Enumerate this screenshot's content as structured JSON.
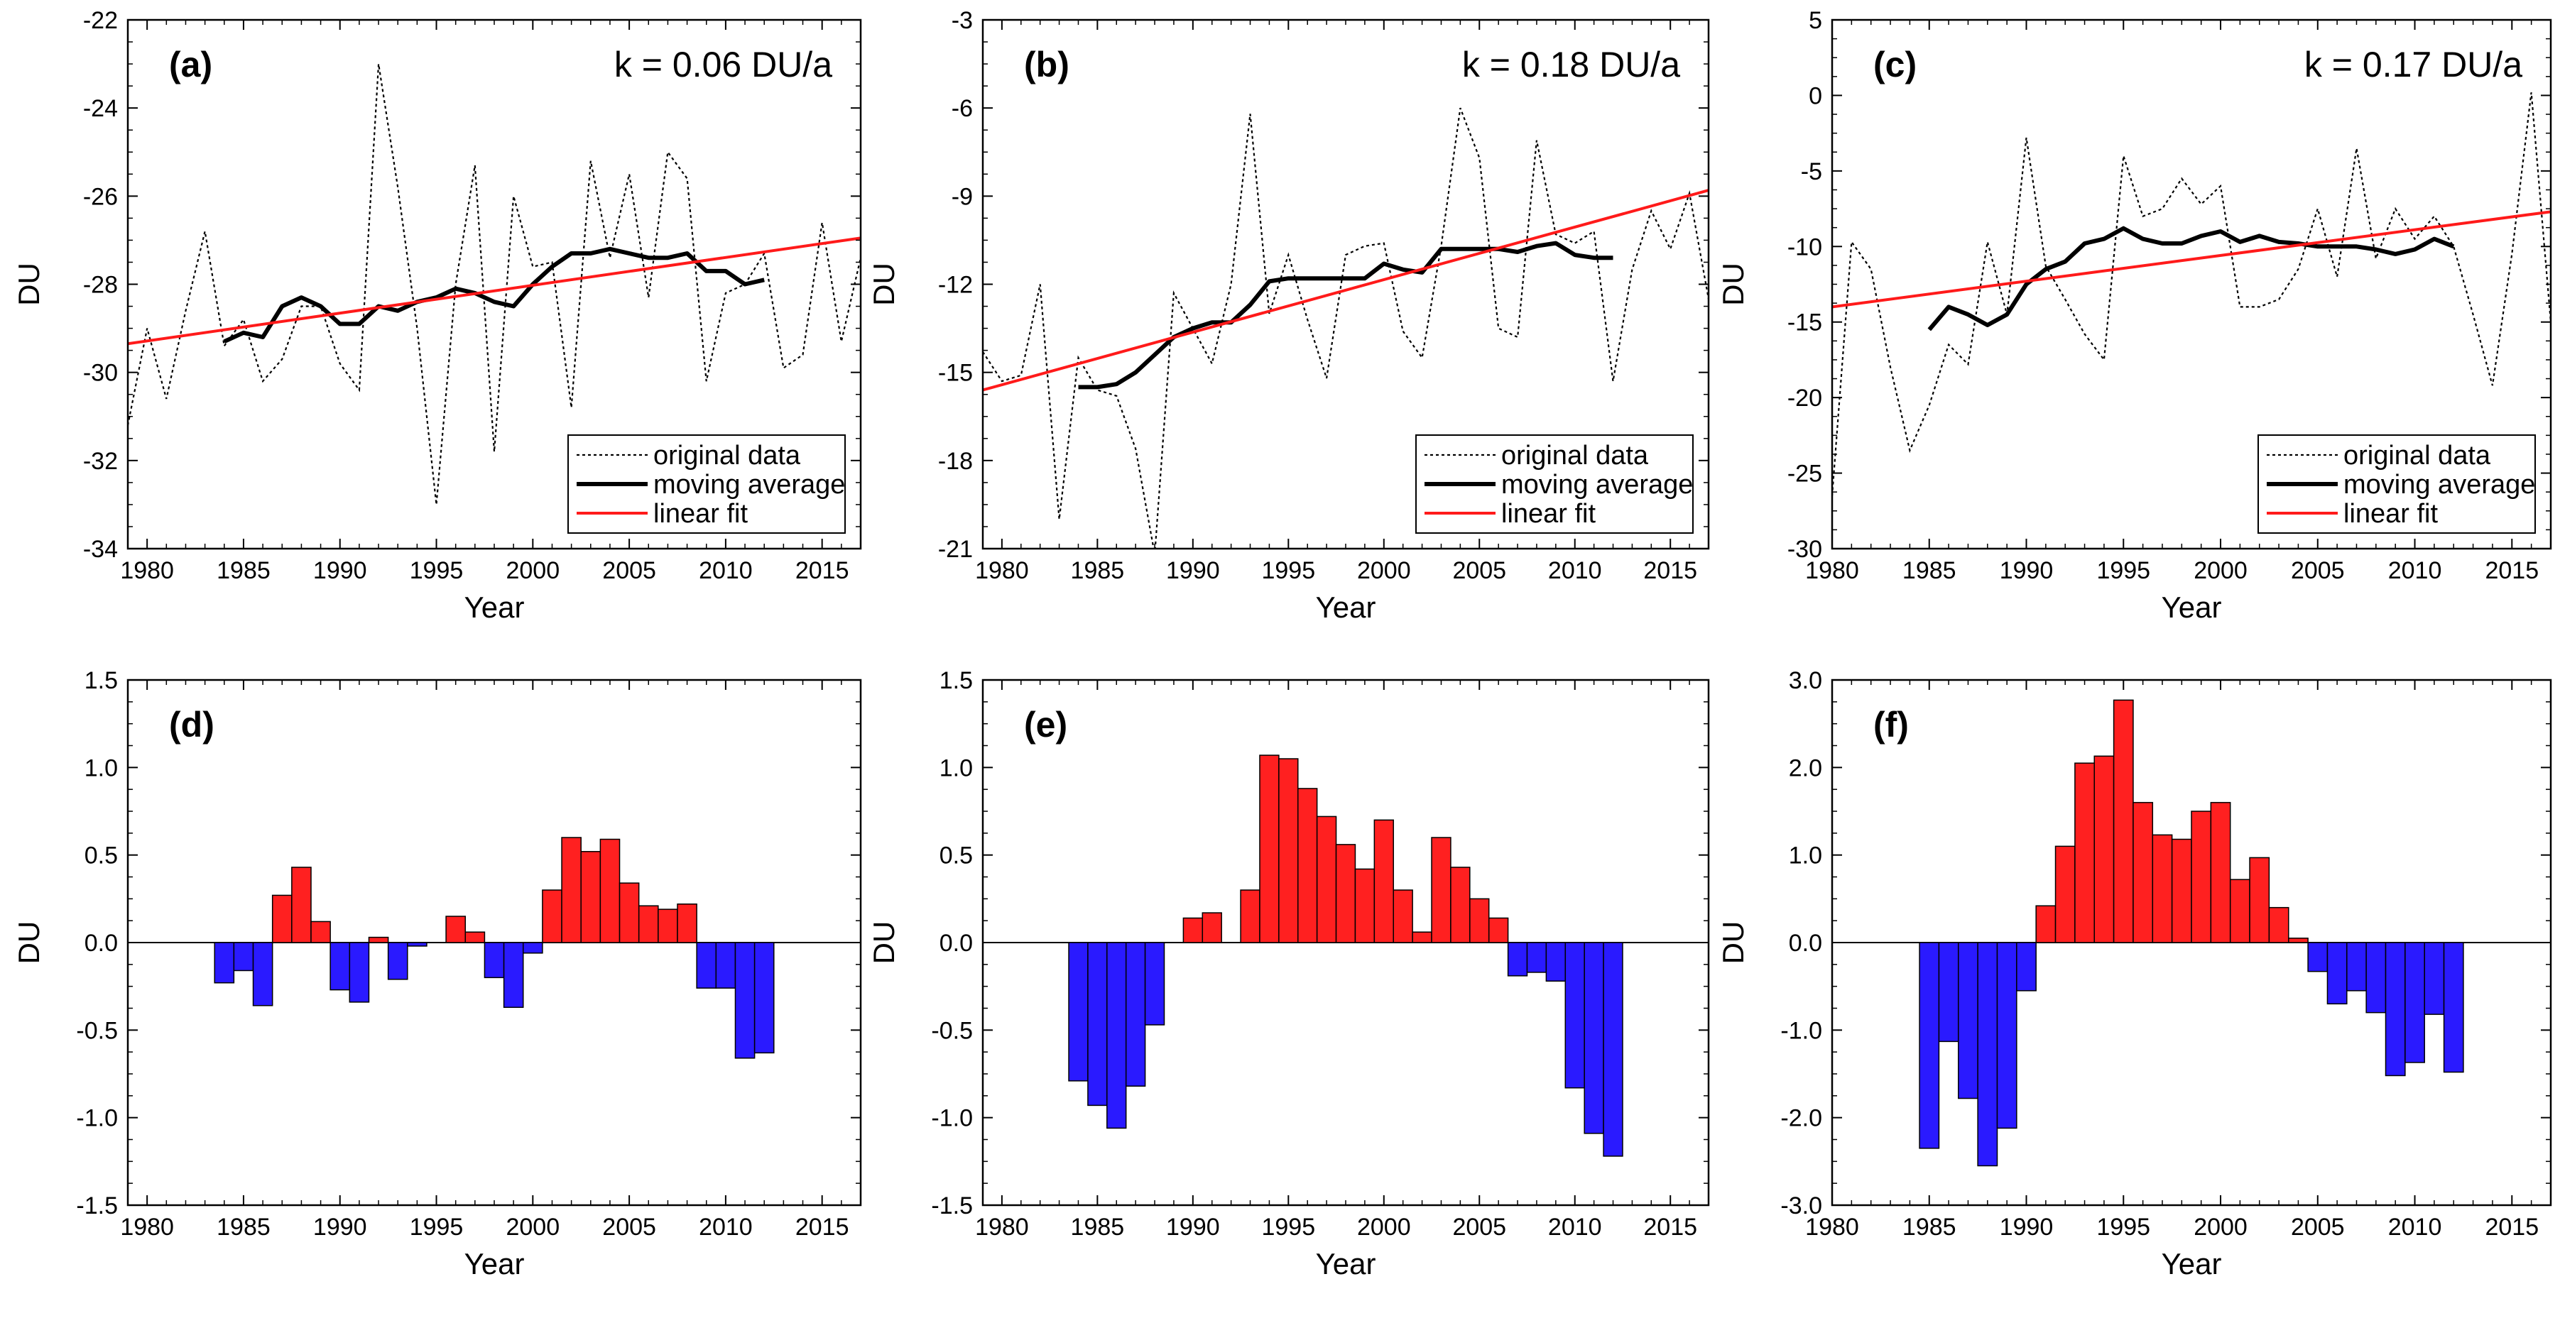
{
  "colors": {
    "positive": "#ff2020",
    "negative": "#2a1aff",
    "fit": "#ff1a1a",
    "line": "#000000",
    "frame": "#000000"
  },
  "legend": {
    "original": "original data",
    "moving": "moving average",
    "fit": "linear fit"
  },
  "chart_data": [
    {
      "type": "line",
      "panel": "(a)",
      "annotation": "k = 0.06 DU/a",
      "xlabel": "Year",
      "ylabel": "DU",
      "xlim": [
        1979,
        2017
      ],
      "ylim": [
        -34,
        -22
      ],
      "xticks": [
        1980,
        1985,
        1990,
        1995,
        2000,
        2005,
        2010,
        2015
      ],
      "yticks": [
        -34,
        -32,
        -30,
        -28,
        -26,
        -24,
        -22
      ],
      "yticklabels": [
        "-34",
        "-32",
        "-30",
        "-28",
        "-26",
        "-24",
        "-22"
      ],
      "legend_position": "bottom-right",
      "series": [
        {
          "name": "original data",
          "style": "dotted",
          "x": [
            1979,
            1980,
            1981,
            1982,
            1983,
            1984,
            1985,
            1986,
            1987,
            1988,
            1989,
            1990,
            1991,
            1992,
            1993,
            1994,
            1995,
            1996,
            1997,
            1998,
            1999,
            2000,
            2001,
            2002,
            2003,
            2004,
            2005,
            2006,
            2007,
            2008,
            2009,
            2010,
            2011,
            2012,
            2013,
            2014,
            2015,
            2016,
            2017
          ],
          "values": [
            -31.2,
            -29.0,
            -30.6,
            -28.6,
            -26.8,
            -29.4,
            -28.8,
            -30.2,
            -29.7,
            -28.5,
            -28.5,
            -29.8,
            -30.4,
            -23.0,
            -25.8,
            -29.0,
            -33.0,
            -28.0,
            -25.3,
            -31.8,
            -26.0,
            -27.6,
            -27.5,
            -30.8,
            -25.2,
            -27.4,
            -25.5,
            -28.3,
            -25.0,
            -25.6,
            -30.2,
            -28.2,
            -28.0,
            -27.3,
            -29.9,
            -29.6,
            -26.6,
            -29.3,
            -27.4
          ]
        },
        {
          "name": "moving average",
          "style": "solid-thick",
          "x": [
            1984,
            1985,
            1986,
            1987,
            1988,
            1989,
            1990,
            1991,
            1992,
            1993,
            1994,
            1995,
            1996,
            1997,
            1998,
            1999,
            2000,
            2001,
            2002,
            2003,
            2004,
            2005,
            2006,
            2007,
            2008,
            2009,
            2010,
            2011,
            2012
          ],
          "values": [
            -29.3,
            -29.1,
            -29.2,
            -28.5,
            -28.3,
            -28.5,
            -28.9,
            -28.9,
            -28.5,
            -28.6,
            -28.4,
            -28.3,
            -28.1,
            -28.2,
            -28.4,
            -28.5,
            -28.0,
            -27.6,
            -27.3,
            -27.3,
            -27.2,
            -27.3,
            -27.4,
            -27.4,
            -27.3,
            -27.7,
            -27.7,
            -28.0,
            -27.9
          ]
        },
        {
          "name": "linear fit",
          "style": "fit",
          "x": [
            1979,
            2017
          ],
          "values": [
            -29.35,
            -26.95
          ]
        }
      ]
    },
    {
      "type": "line",
      "panel": "(b)",
      "annotation": "k = 0.18 DU/a",
      "xlabel": "Year",
      "ylabel": "DU",
      "xlim": [
        1979,
        2017
      ],
      "ylim": [
        -21,
        -3
      ],
      "xticks": [
        1980,
        1985,
        1990,
        1995,
        2000,
        2005,
        2010,
        2015
      ],
      "yticks": [
        -21,
        -18,
        -15,
        -12,
        -9,
        -6,
        -3
      ],
      "yticklabels": [
        "-21",
        "-18",
        "-15",
        "-12",
        "-9",
        "-6",
        "-3"
      ],
      "legend_position": "bottom-right",
      "series": [
        {
          "name": "original data",
          "style": "dotted",
          "x": [
            1979,
            1980,
            1981,
            1982,
            1983,
            1984,
            1985,
            1986,
            1987,
            1988,
            1989,
            1990,
            1991,
            1992,
            1993,
            1994,
            1995,
            1996,
            1997,
            1998,
            1999,
            2000,
            2001,
            2002,
            2003,
            2004,
            2005,
            2006,
            2007,
            2008,
            2009,
            2010,
            2011,
            2012,
            2013,
            2014,
            2015,
            2016,
            2017
          ],
          "values": [
            -14.3,
            -15.3,
            -15.1,
            -12.0,
            -20.0,
            -14.5,
            -15.6,
            -15.8,
            -17.6,
            -21.2,
            -12.3,
            -13.5,
            -14.7,
            -12.0,
            -6.2,
            -13.0,
            -11.0,
            -13.2,
            -15.2,
            -11.0,
            -10.7,
            -10.6,
            -13.6,
            -14.5,
            -10.7,
            -6.0,
            -7.7,
            -13.5,
            -13.8,
            -7.1,
            -10.3,
            -10.6,
            -10.2,
            -15.3,
            -11.5,
            -9.5,
            -10.8,
            -8.9,
            -12.5
          ]
        },
        {
          "name": "moving average",
          "style": "solid-thick",
          "x": [
            1984,
            1985,
            1986,
            1987,
            1988,
            1989,
            1990,
            1991,
            1992,
            1993,
            1994,
            1995,
            1996,
            1997,
            1998,
            1999,
            2000,
            2001,
            2002,
            2003,
            2004,
            2005,
            2006,
            2007,
            2008,
            2009,
            2010,
            2011,
            2012
          ],
          "values": [
            -15.5,
            -15.5,
            -15.4,
            -15.0,
            -14.4,
            -13.8,
            -13.5,
            -13.3,
            -13.3,
            -12.7,
            -11.9,
            -11.8,
            -11.8,
            -11.8,
            -11.8,
            -11.8,
            -11.3,
            -11.5,
            -11.6,
            -10.8,
            -10.8,
            -10.8,
            -10.8,
            -10.9,
            -10.7,
            -10.6,
            -11.0,
            -11.1,
            -11.1
          ]
        },
        {
          "name": "linear fit",
          "style": "fit",
          "x": [
            1979,
            2017
          ],
          "values": [
            -15.6,
            -8.8
          ]
        }
      ]
    },
    {
      "type": "line",
      "panel": "(c)",
      "annotation": "k = 0.17 DU/a",
      "xlabel": "Year",
      "ylabel": "DU",
      "xlim": [
        1980,
        2017
      ],
      "ylim": [
        -30,
        5
      ],
      "xticks": [
        1980,
        1985,
        1990,
        1995,
        2000,
        2005,
        2010,
        2015
      ],
      "yticks": [
        -30,
        -25,
        -20,
        -15,
        -10,
        -5,
        0,
        5
      ],
      "yticklabels": [
        "-30",
        "-25",
        "-20",
        "-15",
        "-10",
        "-5",
        "0",
        "5"
      ],
      "legend_position": "bottom-right",
      "series": [
        {
          "name": "original data",
          "style": "dotted",
          "x": [
            1980,
            1981,
            1982,
            1983,
            1984,
            1985,
            1986,
            1987,
            1988,
            1989,
            1990,
            1991,
            1992,
            1993,
            1994,
            1995,
            1996,
            1997,
            1998,
            1999,
            2000,
            2001,
            2002,
            2003,
            2004,
            2005,
            2006,
            2007,
            2008,
            2009,
            2010,
            2011,
            2012,
            2013,
            2014,
            2015,
            2016,
            2017
          ],
          "values": [
            -26.5,
            -9.7,
            -11.5,
            -18.0,
            -23.5,
            -20.5,
            -16.5,
            -17.8,
            -9.7,
            -14.5,
            -2.8,
            -11.3,
            -13.5,
            -15.8,
            -17.5,
            -4.0,
            -8.0,
            -7.5,
            -5.5,
            -7.2,
            -6.0,
            -14.0,
            -14.0,
            -13.5,
            -11.5,
            -7.5,
            -12.0,
            -3.5,
            -10.8,
            -7.5,
            -9.5,
            -8.0,
            -10.0,
            -14.5,
            -19.2,
            -10.5,
            0.2,
            -15.0
          ]
        },
        {
          "name": "moving average",
          "style": "solid-thick",
          "x": [
            1985,
            1986,
            1987,
            1988,
            1989,
            1990,
            1991,
            1992,
            1993,
            1994,
            1995,
            1996,
            1997,
            1998,
            1999,
            2000,
            2001,
            2002,
            2003,
            2004,
            2005,
            2006,
            2007,
            2008,
            2009,
            2010,
            2011,
            2012
          ],
          "values": [
            -15.5,
            -14.0,
            -14.5,
            -15.2,
            -14.5,
            -12.5,
            -11.5,
            -11.0,
            -9.8,
            -9.5,
            -8.8,
            -9.5,
            -9.8,
            -9.8,
            -9.3,
            -9.0,
            -9.7,
            -9.3,
            -9.7,
            -9.8,
            -10.0,
            -10.0,
            -10.0,
            -10.2,
            -10.5,
            -10.2,
            -9.5,
            -10.0
          ]
        },
        {
          "name": "linear fit",
          "style": "fit",
          "x": [
            1980,
            2017
          ],
          "values": [
            -14.0,
            -7.7
          ]
        }
      ]
    },
    {
      "type": "bar",
      "panel": "(d)",
      "xlabel": "Year",
      "ylabel": "DU",
      "xlim": [
        1979,
        2017
      ],
      "ylim": [
        -1.5,
        1.5
      ],
      "xticks": [
        1980,
        1985,
        1990,
        1995,
        2000,
        2005,
        2010,
        2015
      ],
      "yticks": [
        -1.5,
        -1.0,
        -0.5,
        0.0,
        0.5,
        1.0,
        1.5
      ],
      "yticklabels": [
        "-1.5",
        "-1.0",
        "-0.5",
        "0.0",
        "0.5",
        "1.0",
        "1.5"
      ],
      "categories": [
        1984,
        1985,
        1986,
        1987,
        1988,
        1989,
        1990,
        1991,
        1992,
        1993,
        1994,
        1995,
        1996,
        1997,
        1998,
        1999,
        2000,
        2001,
        2002,
        2003,
        2004,
        2005,
        2006,
        2007,
        2008,
        2009,
        2010,
        2011,
        2012
      ],
      "values": [
        -0.23,
        -0.16,
        -0.36,
        0.27,
        0.43,
        0.12,
        -0.27,
        -0.34,
        0.03,
        -0.21,
        -0.02,
        0.0,
        0.15,
        0.06,
        -0.2,
        -0.37,
        -0.06,
        0.3,
        0.6,
        0.52,
        0.59,
        0.34,
        0.21,
        0.19,
        0.22,
        -0.26,
        -0.26,
        -0.66,
        -0.63
      ]
    },
    {
      "type": "bar",
      "panel": "(e)",
      "xlabel": "Year",
      "ylabel": "DU",
      "xlim": [
        1979,
        2017
      ],
      "ylim": [
        -1.5,
        1.5
      ],
      "xticks": [
        1980,
        1985,
        1990,
        1995,
        2000,
        2005,
        2010,
        2015
      ],
      "yticks": [
        -1.5,
        -1.0,
        -0.5,
        0.0,
        0.5,
        1.0,
        1.5
      ],
      "yticklabels": [
        "-1.5",
        "-1.0",
        "-0.5",
        "0.0",
        "0.5",
        "1.0",
        "1.5"
      ],
      "categories": [
        1984,
        1985,
        1986,
        1987,
        1988,
        1989,
        1990,
        1991,
        1992,
        1993,
        1994,
        1995,
        1996,
        1997,
        1998,
        1999,
        2000,
        2001,
        2002,
        2003,
        2004,
        2005,
        2006,
        2007,
        2008,
        2009,
        2010,
        2011,
        2012
      ],
      "values": [
        -0.79,
        -0.93,
        -1.06,
        -0.82,
        -0.47,
        0.0,
        0.14,
        0.17,
        0.0,
        0.3,
        1.07,
        1.05,
        0.88,
        0.72,
        0.56,
        0.42,
        0.7,
        0.3,
        0.06,
        0.6,
        0.43,
        0.25,
        0.14,
        -0.19,
        -0.17,
        -0.22,
        -0.83,
        -1.09,
        -1.22
      ]
    },
    {
      "type": "bar",
      "panel": "(f)",
      "xlabel": "Year",
      "ylabel": "DU",
      "xlim": [
        1980,
        2017
      ],
      "ylim": [
        -3.0,
        3.0
      ],
      "xticks": [
        1980,
        1985,
        1990,
        1995,
        2000,
        2005,
        2010,
        2015
      ],
      "yticks": [
        -3.0,
        -2.0,
        -1.0,
        0.0,
        1.0,
        2.0,
        3.0
      ],
      "yticklabels": [
        "-3.0",
        "-2.0",
        "-1.0",
        "0.0",
        "1.0",
        "2.0",
        "3.0"
      ],
      "categories": [
        1985,
        1986,
        1987,
        1988,
        1989,
        1990,
        1991,
        1992,
        1993,
        1994,
        1995,
        1996,
        1997,
        1998,
        1999,
        2000,
        2001,
        2002,
        2003,
        2004,
        2005,
        2006,
        2007,
        2008,
        2009,
        2010,
        2011,
        2012
      ],
      "values": [
        -2.35,
        -1.13,
        -1.78,
        -2.55,
        -2.12,
        -0.55,
        0.42,
        1.1,
        2.05,
        2.13,
        2.77,
        1.6,
        1.23,
        1.18,
        1.5,
        1.6,
        0.72,
        0.97,
        0.4,
        0.05,
        -0.33,
        -0.7,
        -0.55,
        -0.8,
        -1.52,
        -1.37,
        -0.82,
        -1.48
      ]
    }
  ]
}
